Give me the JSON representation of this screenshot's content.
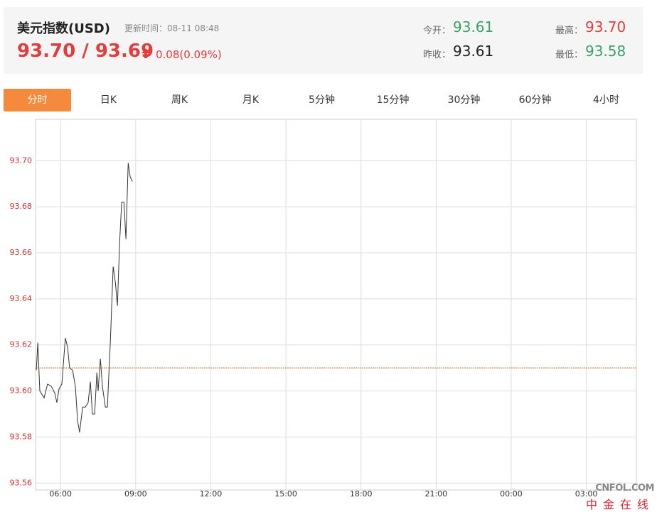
{
  "header": {
    "title": "美元指数(USD)",
    "update_time": "更新时间：08-11 08:48",
    "price": "93.70 / 93.69",
    "change": "0.08(0.09%)",
    "open_label": "今开：",
    "open": "93.61",
    "prev_close_label": "昨收：",
    "prev_close": "93.61",
    "high_label": "最高：",
    "high": "93.70",
    "low_label": "最低：",
    "low": "93.58"
  },
  "tabs": [
    "分时",
    "日K",
    "周K",
    "月K",
    "5分钟",
    "15分钟",
    "30分钟",
    "60分钟",
    "4小时"
  ],
  "watermark": {
    "brand": "CNFOL.COM",
    "name": "中金在线"
  },
  "chart_data": {
    "type": "line",
    "x": [
      5.03,
      5.09,
      5.17,
      5.34,
      5.48,
      5.63,
      5.77,
      5.85,
      5.94,
      6.05,
      6.19,
      6.28,
      6.36,
      6.48,
      6.59,
      6.68,
      6.76,
      6.88,
      6.99,
      7.1,
      7.19,
      7.27,
      7.36,
      7.45,
      7.5,
      7.59,
      7.67,
      7.79,
      7.87,
      7.99,
      8.1,
      8.19,
      8.27,
      8.36,
      8.44,
      8.53,
      8.61,
      8.7,
      8.78,
      8.87
    ],
    "series": [
      {
        "color": "#333333",
        "values": [
          93.609,
          93.621,
          93.6,
          93.597,
          93.603,
          93.602,
          93.599,
          93.595,
          93.601,
          93.603,
          93.623,
          93.619,
          93.61,
          93.609,
          93.602,
          93.587,
          93.582,
          93.593,
          93.593,
          93.595,
          93.604,
          93.59,
          93.59,
          93.608,
          93.6,
          93.614,
          93.602,
          93.593,
          93.593,
          93.622,
          93.654,
          93.647,
          93.637,
          93.665,
          93.682,
          93.682,
          93.666,
          93.699,
          93.693,
          93.691
        ]
      }
    ],
    "xlim": [
      5,
      29
    ],
    "xticks": [
      {
        "value": 6,
        "label": "06:00"
      },
      {
        "value": 9,
        "label": "09:00"
      },
      {
        "value": 12,
        "label": "12:00"
      },
      {
        "value": 15,
        "label": "15:00"
      },
      {
        "value": 18,
        "label": "18:00"
      },
      {
        "value": 21,
        "label": "21:00"
      },
      {
        "value": 24,
        "label": "00:00"
      },
      {
        "value": 27,
        "label": "03:00"
      }
    ],
    "ylim": [
      93.557,
      93.718
    ],
    "yticks": [
      93.56,
      93.58,
      {
        "value": 93.6,
        "label": "93.60"
      },
      93.62,
      93.64,
      93.66,
      93.68,
      {
        "value": 93.7,
        "label": "93.70"
      }
    ],
    "grid": true,
    "reference_line": {
      "value": 93.61,
      "color": "#e07020"
    }
  }
}
